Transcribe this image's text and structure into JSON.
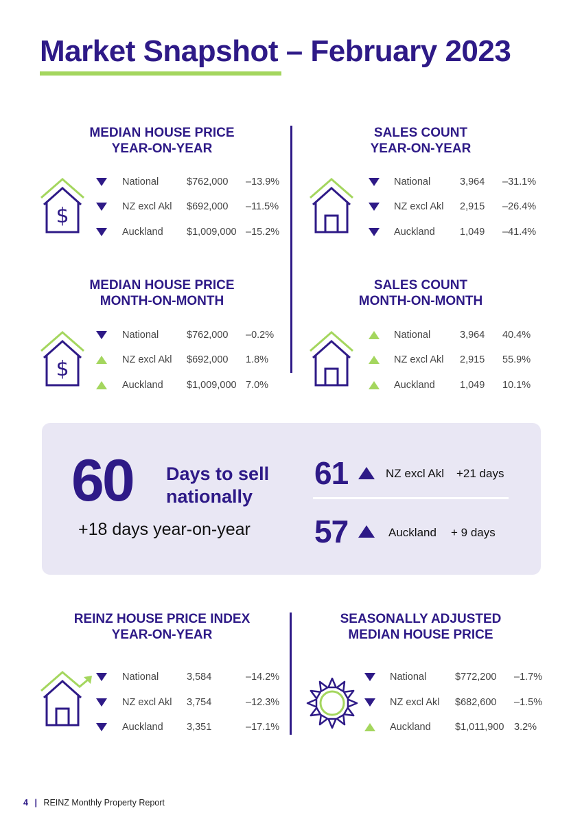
{
  "page": {
    "title": "Market Snapshot – February 2023",
    "footer_page": "4",
    "footer_sep": "|",
    "footer_text": "REINZ Monthly Property Report"
  },
  "colors": {
    "primary": "#2e1a87",
    "accent": "#a4d65e",
    "panel": "#e9e7f4"
  },
  "sections": [
    {
      "heading": [
        "MEDIAN HOUSE PRICE",
        "YEAR-ON-YEAR"
      ],
      "icon": "house-dollar-icon",
      "rows": [
        {
          "direction": "down",
          "region": "National",
          "value": "$762,000",
          "change": "–13.9%"
        },
        {
          "direction": "down",
          "region": "NZ excl Akl",
          "value": "$692,000",
          "change": "–11.5%"
        },
        {
          "direction": "down",
          "region": "Auckland",
          "value": "$1,009,000",
          "change": "–15.2%"
        }
      ]
    },
    {
      "heading": [
        "SALES COUNT",
        "YEAR-ON-YEAR"
      ],
      "icon": "house-icon",
      "rows": [
        {
          "direction": "down",
          "region": "National",
          "value": "3,964",
          "change": "–31.1%"
        },
        {
          "direction": "down",
          "region": "NZ excl Akl",
          "value": "2,915",
          "change": "–26.4%"
        },
        {
          "direction": "down",
          "region": "Auckland",
          "value": "1,049",
          "change": "–41.4%"
        }
      ]
    },
    {
      "heading": [
        "MEDIAN HOUSE PRICE",
        "MONTH-ON-MONTH"
      ],
      "icon": "house-dollar-icon",
      "rows": [
        {
          "direction": "down",
          "region": "National",
          "value": "$762,000",
          "change": "–0.2%"
        },
        {
          "direction": "up",
          "region": "NZ excl Akl",
          "value": "$692,000",
          "change": "1.8%"
        },
        {
          "direction": "up",
          "region": "Auckland",
          "value": "$1,009,000",
          "change": "7.0%"
        }
      ]
    },
    {
      "heading": [
        "SALES COUNT",
        "MONTH-ON-MONTH"
      ],
      "icon": "house-icon",
      "rows": [
        {
          "direction": "up",
          "region": "National",
          "value": "3,964",
          "change": "40.4%"
        },
        {
          "direction": "up",
          "region": "NZ excl Akl",
          "value": "2,915",
          "change": "55.9%"
        },
        {
          "direction": "up",
          "region": "Auckland",
          "value": "1,049",
          "change": "10.1%"
        }
      ]
    },
    {
      "heading": [
        "REINZ HOUSE PRICE INDEX",
        "YEAR-ON-YEAR"
      ],
      "icon": "house-trend-icon",
      "rows": [
        {
          "direction": "down",
          "region": "National",
          "value": "3,584",
          "change": "–14.2%"
        },
        {
          "direction": "down",
          "region": "NZ excl Akl",
          "value": "3,754",
          "change": "–12.3%"
        },
        {
          "direction": "down",
          "region": "Auckland",
          "value": "3,351",
          "change": "–17.1%"
        }
      ]
    },
    {
      "heading": [
        "SEASONALLY ADJUSTED",
        "MEDIAN HOUSE PRICE"
      ],
      "icon": "sun-icon",
      "rows": [
        {
          "direction": "down",
          "region": "National",
          "value": "$772,200",
          "change": "–1.7%"
        },
        {
          "direction": "down",
          "region": "NZ excl Akl",
          "value": "$682,600",
          "change": "–1.5%"
        },
        {
          "direction": "up",
          "region": "Auckland",
          "value": "$1,011,900",
          "change": "3.2%"
        }
      ]
    }
  ],
  "days_to_sell": {
    "national_value": "60",
    "label_line1": "Days to sell",
    "label_line2": "nationally",
    "yoy_note": "+18 days year-on-year",
    "regions": [
      {
        "value": "61",
        "direction": "up",
        "region": "NZ excl Akl",
        "change": "+21 days"
      },
      {
        "value": "57",
        "direction": "up",
        "region": "Auckland",
        "change": "+ 9 days"
      }
    ]
  }
}
